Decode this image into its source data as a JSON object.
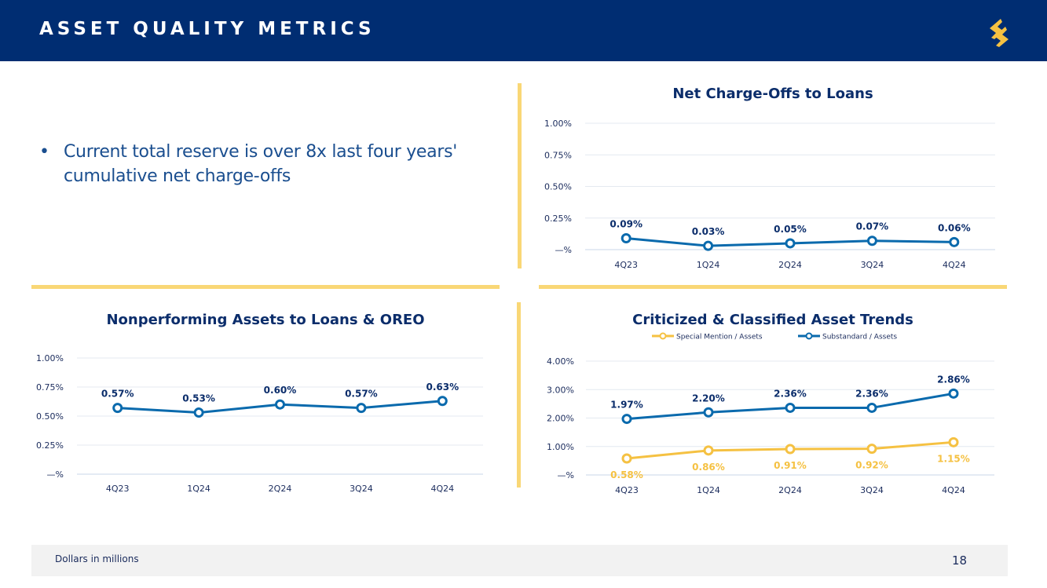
{
  "header": {
    "title": "ASSET QUALITY METRICS"
  },
  "bullets": [
    "Current total reserve is over 8x last four years' cumulative net charge-offs"
  ],
  "footer": {
    "note": "Dollars in millions",
    "page_number": "18"
  },
  "colors": {
    "header_bg": "#002d72",
    "accent_gold": "#f9d776",
    "series_blue": "#0a6aad",
    "series_gold": "#f5c142",
    "title_navy": "#0b2d6b"
  },
  "chart_data": [
    {
      "id": "nco",
      "type": "line",
      "title": "Net Charge-Offs to Loans",
      "categories": [
        "4Q23",
        "1Q24",
        "2Q24",
        "3Q24",
        "4Q24"
      ],
      "yticks": [
        "—%",
        "0.25%",
        "0.50%",
        "0.75%",
        "1.00%"
      ],
      "ylim": [
        0,
        1.0
      ],
      "legend": "none",
      "series": [
        {
          "name": "Net Charge-Offs to Loans",
          "color": "#0a6aad",
          "values": [
            0.09,
            0.03,
            0.05,
            0.07,
            0.06
          ],
          "labels": [
            "0.09%",
            "0.03%",
            "0.05%",
            "0.07%",
            "0.06%"
          ],
          "label_color": "#0b2d6b",
          "label_pos": "above"
        }
      ]
    },
    {
      "id": "npa",
      "type": "line",
      "title": "Nonperforming Assets to Loans & OREO",
      "categories": [
        "4Q23",
        "1Q24",
        "2Q24",
        "3Q24",
        "4Q24"
      ],
      "yticks": [
        "—%",
        "0.25%",
        "0.50%",
        "0.75%",
        "1.00%"
      ],
      "ylim": [
        0,
        1.0
      ],
      "legend": "none",
      "series": [
        {
          "name": "Nonperforming Assets to Loans & OREO",
          "color": "#0a6aad",
          "values": [
            0.57,
            0.53,
            0.6,
            0.57,
            0.63
          ],
          "labels": [
            "0.57%",
            "0.53%",
            "0.60%",
            "0.57%",
            "0.63%"
          ],
          "label_color": "#0b2d6b",
          "label_pos": "above"
        }
      ]
    },
    {
      "id": "cc",
      "type": "line",
      "title": "Criticized & Classified Asset Trends",
      "categories": [
        "4Q23",
        "1Q24",
        "2Q24",
        "3Q24",
        "4Q24"
      ],
      "yticks": [
        "—%",
        "1.00%",
        "2.00%",
        "3.00%",
        "4.00%"
      ],
      "ylim": [
        0,
        4.0
      ],
      "legend": "top",
      "series": [
        {
          "name": "Special Mention / Assets",
          "color": "#f5c142",
          "values": [
            0.58,
            0.86,
            0.91,
            0.92,
            1.15
          ],
          "labels": [
            "0.58%",
            "0.86%",
            "0.91%",
            "0.92%",
            "1.15%"
          ],
          "label_color": "#f5c142",
          "label_pos": "below"
        },
        {
          "name": "Substandard / Assets",
          "color": "#0a6aad",
          "values": [
            1.97,
            2.2,
            2.36,
            2.36,
            2.86
          ],
          "labels": [
            "1.97%",
            "2.20%",
            "2.36%",
            "2.36%",
            "2.86%"
          ],
          "label_color": "#0b2d6b",
          "label_pos": "above"
        }
      ]
    }
  ]
}
